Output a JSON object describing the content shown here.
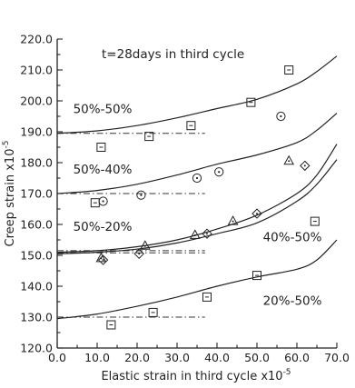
{
  "chart_data": {
    "type": "scatter",
    "title": "t=28days in third cycle",
    "xlabel": "Elastic strain in third cycle x10",
    "xlabel_exp": "-5",
    "ylabel": "Creep strain x10",
    "ylabel_exp": "-5",
    "xlim": [
      0.0,
      70.0
    ],
    "ylim": [
      120.0,
      220.0
    ],
    "x_ticks": [
      0,
      10,
      20,
      30,
      40,
      50,
      60,
      70
    ],
    "x_tick_labels": [
      "0.0",
      "10.0",
      "20.0",
      "30.0",
      "40.0",
      "50.0",
      "60.0",
      "70.0"
    ],
    "y_ticks": [
      120,
      130,
      140,
      150,
      160,
      170,
      180,
      190,
      200,
      210,
      220
    ],
    "y_tick_labels": [
      "120.0",
      "130.0",
      "140.0",
      "150.0",
      "160.0",
      "170.0",
      "180.0",
      "190.0",
      "200.0",
      "210.0",
      "220.0"
    ],
    "grid": false,
    "curves": [
      {
        "x": [
          0,
          10,
          20,
          30,
          40,
          50,
          60,
          65,
          70
        ],
        "y": [
          189.5,
          190.3,
          192,
          194.5,
          197.5,
          200.5,
          205.5,
          209.5,
          214.5
        ]
      },
      {
        "x": [
          0,
          10,
          20,
          30,
          40,
          50,
          60,
          65,
          70
        ],
        "y": [
          170,
          171,
          173,
          176,
          179.5,
          182.5,
          186.5,
          190.5,
          196
        ]
      },
      {
        "x": [
          0,
          10,
          20,
          30,
          40,
          50,
          60,
          65,
          70
        ],
        "y": [
          151,
          151.5,
          152.8,
          155,
          158.5,
          163,
          170,
          176,
          186
        ]
      },
      {
        "x": [
          0,
          10,
          20,
          30,
          40,
          50,
          60,
          65,
          70
        ],
        "y": [
          150.5,
          151,
          152,
          154,
          157,
          160.5,
          167.5,
          173,
          181
        ]
      },
      {
        "x": [
          0,
          10,
          20,
          30,
          40,
          50,
          60,
          65,
          70
        ],
        "y": [
          129.5,
          131,
          133.5,
          136.5,
          140,
          143,
          145.5,
          148.5,
          155
        ]
      }
    ],
    "baselines": [
      {
        "y": 189.5,
        "x": [
          0,
          37
        ]
      },
      {
        "y": 170.0,
        "x": [
          0,
          37
        ]
      },
      {
        "y": 151.5,
        "x": [
          0,
          37
        ]
      },
      {
        "y": 150.8,
        "x": [
          0,
          37
        ]
      },
      {
        "y": 130.0,
        "x": [
          0,
          37
        ]
      }
    ],
    "series": [
      {
        "marker": "square",
        "points": [
          [
            11,
            185
          ],
          [
            23,
            188.5
          ],
          [
            33.5,
            192
          ],
          [
            48.5,
            199.5
          ],
          [
            58,
            210
          ],
          [
            9.5,
            167
          ],
          [
            64.5,
            161
          ],
          [
            50,
            143.5
          ],
          [
            37.5,
            136.5
          ],
          [
            24,
            131.5
          ],
          [
            13.5,
            127.5
          ]
        ]
      },
      {
        "marker": "circle",
        "points": [
          [
            56,
            195
          ],
          [
            11.5,
            167.5
          ],
          [
            21,
            169.5
          ],
          [
            35,
            175
          ],
          [
            40.5,
            177
          ]
        ]
      },
      {
        "marker": "triangle",
        "points": [
          [
            11,
            149
          ],
          [
            22,
            153
          ],
          [
            34.5,
            156.5
          ],
          [
            44,
            161
          ],
          [
            58,
            180.5
          ]
        ]
      },
      {
        "marker": "diamond",
        "points": [
          [
            11.5,
            148.5
          ],
          [
            20.5,
            150.5
          ],
          [
            37.5,
            157
          ],
          [
            50,
            163.5
          ],
          [
            62,
            179
          ]
        ]
      }
    ],
    "annotations": [
      {
        "text": "50%-50%",
        "x": 4,
        "y": 196
      },
      {
        "text": "50%-40%",
        "x": 4,
        "y": 176.5
      },
      {
        "text": "50%-20%",
        "x": 4,
        "y": 158
      },
      {
        "text": "40%-50%",
        "x": 51.5,
        "y": 154.5
      },
      {
        "text": "20%-50%",
        "x": 51.5,
        "y": 134
      }
    ]
  }
}
